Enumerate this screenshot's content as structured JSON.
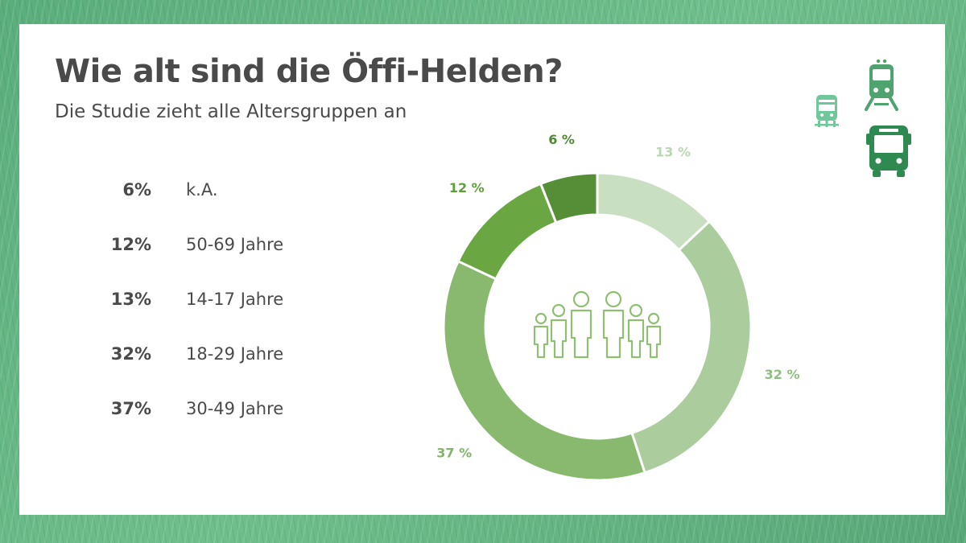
{
  "title": "Wie alt sind die Öffi-Helden?",
  "subtitle": "Die Studie zieht alle Altersgruppen an",
  "legend": [
    {
      "pct": "6%",
      "label": "k.A."
    },
    {
      "pct": "12%",
      "label": "50-69 Jahre"
    },
    {
      "pct": "13%",
      "label": "14-17 Jahre"
    },
    {
      "pct": "32%",
      "label": "18-29 Jahre"
    },
    {
      "pct": "37%",
      "label": "30-49 Jahre"
    }
  ],
  "icons": [
    "family-icon",
    "tram-icon",
    "train-icon",
    "bus-icon"
  ],
  "chart_data": {
    "type": "pie",
    "donut": true,
    "slices": [
      {
        "label": "14-17 Jahre",
        "value": 13,
        "display": "13 %",
        "color": "#c9dfc1",
        "label_color": "#b9d7b0"
      },
      {
        "label": "18-29 Jahre",
        "value": 32,
        "display": "32 %",
        "color": "#abcc9d",
        "label_color": "#8fbf7f"
      },
      {
        "label": "30-49 Jahre",
        "value": 37,
        "display": "37 %",
        "color": "#89b96f",
        "label_color": "#82b56c"
      },
      {
        "label": "50-69 Jahre",
        "value": 12,
        "display": "12 %",
        "color": "#6aa641",
        "label_color": "#5f9f3a"
      },
      {
        "label": "k.A.",
        "value": 6,
        "display": "6 %",
        "color": "#568d37",
        "label_color": "#4f8733"
      }
    ],
    "legend_placement": "left"
  }
}
